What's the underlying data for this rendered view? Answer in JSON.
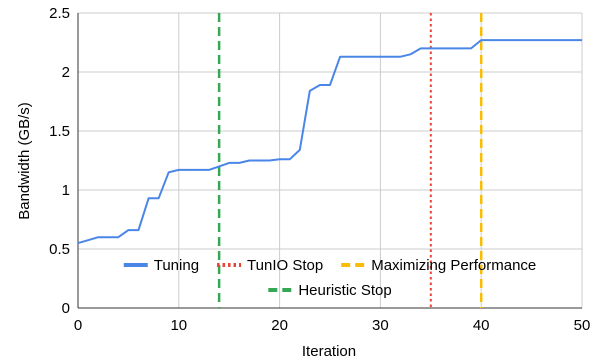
{
  "chart_data": {
    "type": "line",
    "title": "",
    "xlabel": "Iteration",
    "ylabel": "Bandwidth (GB/s)",
    "xlim": [
      0,
      50
    ],
    "ylim": [
      0,
      2.5
    ],
    "xticks": [
      0,
      10,
      20,
      30,
      40,
      50
    ],
    "yticks": [
      0,
      0.5,
      1,
      1.5,
      2,
      2.5
    ],
    "xtick_labels": [
      "0",
      "10",
      "20",
      "30",
      "40",
      "50"
    ],
    "ytick_labels": [
      "0",
      "0.5",
      "1",
      "1.5",
      "2",
      "2.5"
    ],
    "grid": true,
    "legend_position": "bottom",
    "series": [
      {
        "name": "Tuning",
        "color": "#4a86e8",
        "style": "solid",
        "x": [
          0,
          1,
          2,
          3,
          4,
          5,
          6,
          7,
          8,
          9,
          10,
          11,
          12,
          13,
          14,
          15,
          16,
          17,
          18,
          19,
          20,
          21,
          22,
          23,
          24,
          25,
          26,
          27,
          28,
          29,
          30,
          31,
          32,
          33,
          34,
          35,
          36,
          37,
          38,
          39,
          40,
          41,
          42,
          43,
          44,
          45,
          46,
          47,
          48,
          49,
          50
        ],
        "y": [
          0.55,
          0.575,
          0.6,
          0.6,
          0.6,
          0.66,
          0.66,
          0.93,
          0.93,
          1.15,
          1.17,
          1.17,
          1.17,
          1.17,
          1.2,
          1.23,
          1.23,
          1.25,
          1.25,
          1.25,
          1.26,
          1.26,
          1.34,
          1.84,
          1.89,
          1.89,
          2.13,
          2.13,
          2.13,
          2.13,
          2.13,
          2.13,
          2.13,
          2.15,
          2.2,
          2.2,
          2.2,
          2.2,
          2.2,
          2.2,
          2.27,
          2.27,
          2.27,
          2.27,
          2.27,
          2.27,
          2.27,
          2.27,
          2.27,
          2.27,
          2.27
        ]
      }
    ],
    "vertical_lines": [
      {
        "name": "TunIO Stop",
        "x": 35,
        "color": "#ea4335",
        "style": "dotted"
      },
      {
        "name": "Maximizing Performance",
        "x": 40,
        "color": "#fbbc04",
        "style": "dashed"
      },
      {
        "name": "Heuristic Stop",
        "x": 14,
        "color": "#34a853",
        "style": "dashed"
      }
    ],
    "legend": [
      {
        "label": "Tuning",
        "color": "#4a86e8",
        "style": "solid"
      },
      {
        "label": "TunIO Stop",
        "color": "#ea4335",
        "style": "dotted"
      },
      {
        "label": "Maximizing Performance",
        "color": "#fbbc04",
        "style": "dashed"
      },
      {
        "label": "Heuristic Stop",
        "color": "#34a853",
        "style": "dashed"
      }
    ]
  }
}
